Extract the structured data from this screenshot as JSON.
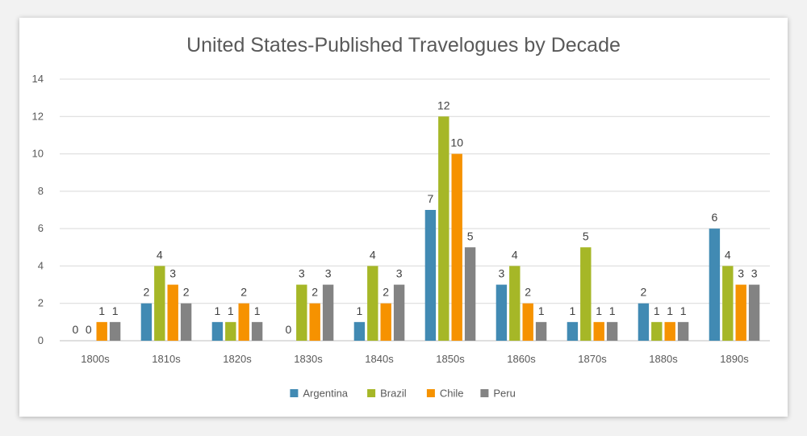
{
  "chart_data": {
    "type": "bar",
    "title": "United States-Published Travelogues by Decade",
    "xlabel": "",
    "ylabel": "",
    "categories": [
      "1800s",
      "1810s",
      "1820s",
      "1830s",
      "1840s",
      "1850s",
      "1860s",
      "1870s",
      "1880s",
      "1890s"
    ],
    "ylim": [
      0,
      14
    ],
    "yticks": [
      "0",
      "2",
      "4",
      "6",
      "8",
      "10",
      "12",
      "14"
    ],
    "grid": true,
    "legend_position": "bottom",
    "series": [
      {
        "name": "Argentina",
        "color": "#418AB3",
        "values": [
          0,
          2,
          1,
          0,
          1,
          7,
          3,
          1,
          2,
          6
        ]
      },
      {
        "name": "Brazil",
        "color": "#A6B727",
        "values": [
          0,
          4,
          1,
          3,
          4,
          12,
          4,
          5,
          1,
          4
        ]
      },
      {
        "name": "Chile",
        "color": "#F69200",
        "values": [
          1,
          3,
          2,
          2,
          2,
          10,
          2,
          1,
          1,
          3
        ]
      },
      {
        "name": "Peru",
        "color": "#838383",
        "values": [
          1,
          2,
          1,
          3,
          3,
          5,
          1,
          1,
          1,
          3
        ]
      }
    ]
  }
}
